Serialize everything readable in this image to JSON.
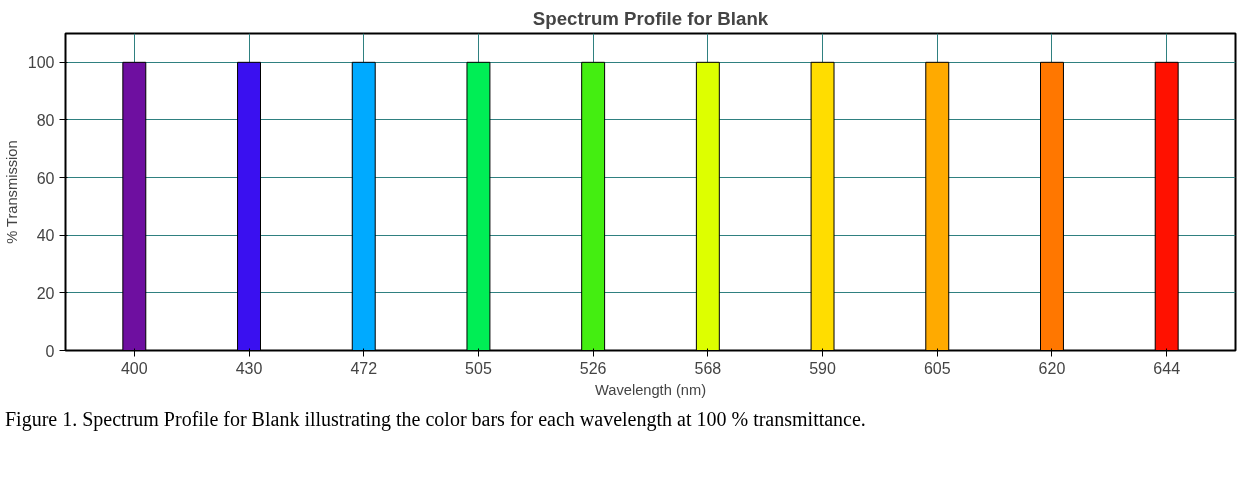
{
  "chart_data": {
    "type": "bar",
    "title": "Spectrum Profile for Blank",
    "xlabel": "Wavelength (nm)",
    "ylabel": "% Transmission",
    "categories": [
      "400",
      "430",
      "472",
      "505",
      "526",
      "568",
      "590",
      "605",
      "620",
      "644"
    ],
    "values": [
      100,
      100,
      100,
      100,
      100,
      100,
      100,
      100,
      100,
      100
    ],
    "colors": [
      "#6e0fa0",
      "#3a10f0",
      "#00aaff",
      "#00ee55",
      "#44ee11",
      "#ddff00",
      "#ffdd00",
      "#ffaa00",
      "#ff7700",
      "#ff1100"
    ],
    "ylim": [
      0,
      110
    ],
    "yticks": [
      0,
      20,
      40,
      60,
      80,
      100
    ],
    "grid": true,
    "annotations": [
      "Figure 1. Spectrum Profile for Blank illustrating the color bars for each wavelength at 100 % transmittance."
    ]
  }
}
